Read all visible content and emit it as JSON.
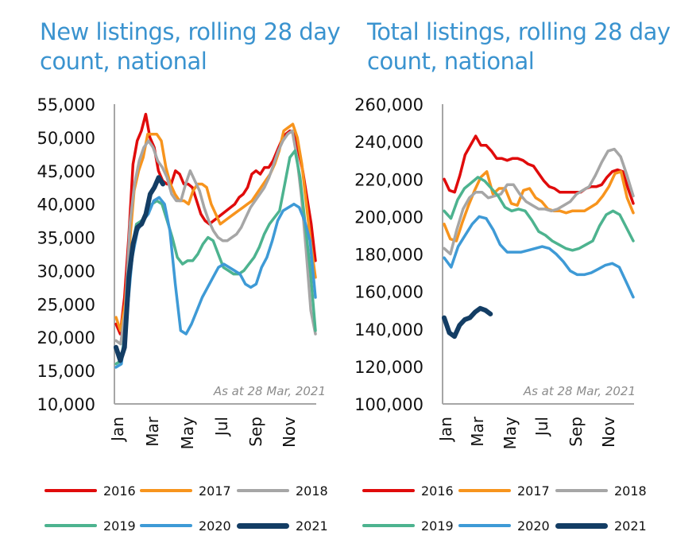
{
  "colors": {
    "title": "#3a93cf",
    "axis": "#a6a6a6",
    "annotation": "#8c8c8c",
    "2016": "#e00b0b",
    "2017": "#f7941d",
    "2018": "#a6a6a6",
    "2019": "#4db38f",
    "2020": "#3e9ad6",
    "2021": "#133d64"
  },
  "chart_data": [
    {
      "type": "line",
      "title": "New listings, rolling 28 day count, national",
      "xlabel": "",
      "ylabel": "",
      "x_tick_labels": [
        "Jan",
        "Mar",
        "May",
        "Jul",
        "Sep",
        "Nov"
      ],
      "y_tick_labels": [
        "55,000",
        "50,000",
        "45,000",
        "40,000",
        "35,000",
        "30,000",
        "25,000",
        "20,000",
        "15,000",
        "10,000"
      ],
      "ylim": [
        10000,
        55000
      ],
      "x_unit": "week of year (1-52)",
      "annotation": "As at 28 Mar, 2021",
      "grid": false,
      "legend_position": "bottom",
      "series": [
        {
          "name": "2016",
          "values": [
            22000,
            20500,
            26000,
            35000,
            46000,
            49500,
            51000,
            53500,
            50000,
            48500,
            45000,
            43500,
            43000,
            43000,
            45000,
            44500,
            43000,
            43000,
            42500,
            40500,
            38500,
            37500,
            37000,
            37500,
            38000,
            38500,
            39000,
            39500,
            40000,
            41000,
            41500,
            42500,
            44500,
            45000,
            44500,
            45500,
            45500,
            46500,
            48000,
            49500,
            50500,
            51000,
            50500,
            48000,
            45000,
            41000,
            37000,
            31500
          ]
        },
        {
          "name": "2017",
          "values": [
            23000,
            21000,
            25000,
            34000,
            42000,
            45000,
            47000,
            50500,
            50500,
            50500,
            49500,
            45500,
            43000,
            41500,
            40500,
            40500,
            40000,
            42000,
            43000,
            43000,
            42500,
            40000,
            38500,
            37000,
            37500,
            38000,
            38500,
            39000,
            39500,
            40000,
            40500,
            41500,
            42500,
            43500,
            44500,
            46000,
            48000,
            51000,
            51500,
            52000,
            50000,
            46000,
            40000,
            34000,
            29000
          ]
        },
        {
          "name": "2018",
          "values": [
            19500,
            19000,
            24000,
            37000,
            43000,
            46500,
            48500,
            49500,
            48500,
            46500,
            45500,
            44000,
            41500,
            40500,
            40500,
            43000,
            45000,
            43500,
            42000,
            39500,
            37500,
            36000,
            35000,
            34500,
            34500,
            35000,
            35500,
            36500,
            38000,
            39500,
            40500,
            41500,
            42500,
            44000,
            46000,
            48000,
            49500,
            50500,
            51000,
            47000,
            41000,
            33000,
            24000,
            20500
          ]
        },
        {
          "name": "2019",
          "values": [
            16000,
            16500,
            22000,
            33000,
            37000,
            37500,
            38500,
            40000,
            40500,
            40000,
            37500,
            35000,
            32000,
            31000,
            31500,
            31500,
            32500,
            34000,
            35000,
            34500,
            32500,
            30500,
            30000,
            29500,
            29500,
            30000,
            31000,
            32000,
            33500,
            35500,
            37000,
            38000,
            39000,
            43000,
            47000,
            48000,
            44000,
            37000,
            30000,
            21000
          ]
        },
        {
          "name": "2020",
          "values": [
            15500,
            16000,
            23000,
            32000,
            36000,
            37500,
            38500,
            40500,
            41000,
            40000,
            36000,
            28000,
            21000,
            20500,
            22000,
            24000,
            26000,
            27500,
            29000,
            30500,
            31000,
            30500,
            30000,
            29500,
            28000,
            27500,
            28000,
            30500,
            32000,
            34500,
            37500,
            39000,
            39500,
            40000,
            39500,
            37500,
            34500,
            26000
          ]
        },
        {
          "name": "2021",
          "values": [
            18500,
            16500,
            18500,
            29000,
            34000,
            36500,
            37000,
            38500,
            41500,
            42500,
            44000,
            43000
          ]
        }
      ]
    },
    {
      "type": "line",
      "title": "Total listings, rolling 28 day count, national",
      "xlabel": "",
      "ylabel": "",
      "x_tick_labels": [
        "Jan",
        "Mar",
        "May",
        "Jul",
        "Sep",
        "Nov"
      ],
      "y_tick_labels": [
        "260,000",
        "240,000",
        "220,000",
        "200,000",
        "180,000",
        "160,000",
        "140,000",
        "120,000",
        "100,000"
      ],
      "ylim": [
        100000,
        260000
      ],
      "x_unit": "week of year (1-52)",
      "annotation": "As at 28 Mar, 2021",
      "grid": false,
      "legend_position": "bottom",
      "series": [
        {
          "name": "2016",
          "values": [
            220000,
            214000,
            213000,
            222000,
            233000,
            238000,
            243000,
            238000,
            238000,
            235000,
            231000,
            231000,
            230000,
            231000,
            231000,
            230000,
            228000,
            227000,
            223000,
            219000,
            216000,
            215000,
            213000,
            213000,
            213000,
            213000,
            213000,
            215000,
            216000,
            216000,
            217000,
            221000,
            224000,
            225000,
            224000,
            215000,
            207000
          ]
        },
        {
          "name": "2017",
          "values": [
            196000,
            188000,
            187000,
            197000,
            206000,
            214000,
            221000,
            224000,
            212000,
            215000,
            215000,
            207000,
            206000,
            214000,
            215000,
            210000,
            208000,
            204000,
            203000,
            203000,
            202000,
            203000,
            203000,
            203000,
            205000,
            207000,
            211000,
            216000,
            223000,
            224000,
            210000,
            202000
          ]
        },
        {
          "name": "2018",
          "values": [
            183000,
            180000,
            193000,
            204000,
            210000,
            213000,
            213000,
            210000,
            211000,
            212000,
            217000,
            217000,
            212000,
            208000,
            206000,
            204000,
            204000,
            203000,
            204000,
            206000,
            208000,
            212000,
            214000,
            216000,
            222000,
            229000,
            235000,
            236000,
            232000,
            222000,
            211000
          ]
        },
        {
          "name": "2019",
          "values": [
            203000,
            199000,
            209000,
            215000,
            218000,
            221000,
            219000,
            215000,
            211000,
            205000,
            203000,
            204000,
            203000,
            198000,
            192000,
            190000,
            187000,
            185000,
            183000,
            182000,
            183000,
            185000,
            187000,
            195000,
            201000,
            203000,
            201000,
            194000,
            187000
          ]
        },
        {
          "name": "2020",
          "values": [
            178000,
            173000,
            184000,
            190000,
            196000,
            200000,
            199000,
            193000,
            185000,
            181000,
            181000,
            181000,
            182000,
            183000,
            184000,
            183000,
            180000,
            176000,
            171000,
            169000,
            169000,
            170000,
            172000,
            174000,
            175000,
            173000,
            165000,
            157000
          ]
        },
        {
          "name": "2021",
          "values": [
            146000,
            138000,
            136000,
            142000,
            145000,
            146000,
            149000,
            151000,
            150000,
            148000
          ]
        }
      ]
    }
  ]
}
